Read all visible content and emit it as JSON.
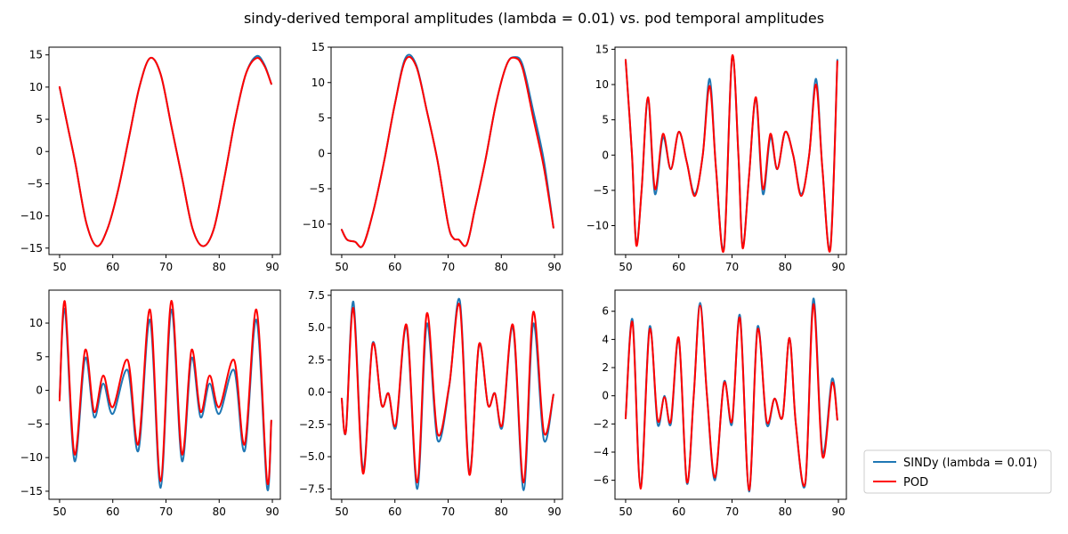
{
  "title": "sindy-derived temporal amplitudes (lambda = 0.01) vs. pod temporal amplitudes",
  "legend": {
    "placement": "bottom-right-outside",
    "entries": [
      {
        "label": "SINDy (lambda = 0.01)",
        "color": "#1f77b4"
      },
      {
        "label": "POD",
        "color": "#ff0000"
      }
    ]
  },
  "chart_data": [
    {
      "type": "line",
      "xlim": [
        48.0,
        91.5
      ],
      "ylim": [
        -16.0,
        16.2
      ],
      "xticks": [
        50,
        60,
        70,
        80,
        90
      ],
      "yticks": [
        -15,
        -10,
        -5,
        0,
        5,
        10,
        15
      ],
      "grid": false,
      "series": [
        {
          "name": "SINDy (lambda = 0.01)",
          "color": "#1f77b4",
          "x": [
            50,
            51.5,
            53,
            55,
            57,
            59,
            61,
            63,
            65,
            67,
            69,
            71,
            73,
            75,
            77,
            79,
            81,
            83,
            85,
            87,
            88.5,
            89.8
          ],
          "y": [
            10,
            4,
            -2,
            -11,
            -14.7,
            -12,
            -6,
            2,
            10,
            14.5,
            12,
            4,
            -4,
            -12,
            -14.7,
            -12,
            -4,
            5,
            12,
            14.8,
            13.5,
            10.5
          ]
        },
        {
          "name": "POD",
          "color": "#ff0000",
          "x": [
            50,
            51.5,
            53,
            55,
            57,
            59,
            61,
            63,
            65,
            67,
            69,
            71,
            73,
            75,
            77,
            79,
            81,
            83,
            85,
            87,
            88.5,
            89.8
          ],
          "y": [
            10,
            4,
            -2,
            -11,
            -14.7,
            -12,
            -6,
            2,
            10,
            14.5,
            12,
            4,
            -4,
            -12,
            -14.7,
            -12,
            -4,
            5,
            12,
            14.5,
            13.3,
            10.5
          ]
        }
      ]
    },
    {
      "type": "line",
      "xlim": [
        48.0,
        91.5
      ],
      "ylim": [
        -14.3,
        15.0
      ],
      "xticks": [
        50,
        60,
        70,
        80,
        90
      ],
      "yticks": [
        -10,
        -5,
        0,
        5,
        10,
        15
      ],
      "grid": false,
      "series": [
        {
          "name": "SINDy (lambda = 0.01)",
          "color": "#1f77b4",
          "x": [
            50,
            51,
            52.5,
            54,
            56,
            58,
            60,
            62,
            64,
            66,
            68,
            70,
            71,
            72,
            73.5,
            75,
            77,
            79,
            81,
            82.5,
            84,
            86,
            88,
            89.8
          ],
          "y": [
            -10.8,
            -12.2,
            -12.5,
            -13,
            -8,
            -1,
            7,
            13.5,
            12.5,
            6,
            -1,
            -10,
            -12,
            -12.2,
            -12.9,
            -8,
            -1,
            7,
            12.5,
            13.6,
            12.5,
            6,
            -1,
            -10.5
          ]
        },
        {
          "name": "POD",
          "color": "#ff0000",
          "x": [
            50,
            51,
            52.5,
            54,
            56,
            58,
            60,
            62,
            64,
            66,
            68,
            70,
            71,
            72,
            73.5,
            75,
            77,
            79,
            81,
            82.5,
            84,
            86,
            88,
            89.8
          ],
          "y": [
            -10.8,
            -12.2,
            -12.5,
            -13,
            -8,
            -1,
            7,
            13.2,
            12.3,
            6,
            -1,
            -10,
            -12,
            -12.2,
            -12.9,
            -8,
            -1,
            7,
            12.5,
            13.5,
            12,
            5,
            -2,
            -10.5
          ]
        }
      ]
    },
    {
      "type": "line",
      "xlim": [
        48.0,
        91.5
      ],
      "ylim": [
        -14.1,
        15.3
      ],
      "xticks": [
        50,
        60,
        70,
        80,
        90
      ],
      "yticks": [
        -10,
        -5,
        0,
        5,
        10,
        15
      ],
      "grid": false,
      "series": [
        {
          "name": "SINDy (lambda = 0.01)",
          "color": "#1f77b4",
          "x": [
            50,
            51.2,
            52,
            53,
            54.2,
            55.5,
            57,
            58.5,
            60,
            61.5,
            63,
            64.5,
            65.8,
            67,
            68.5,
            70,
            71.2,
            72,
            73.2,
            74.5,
            75.8,
            77.2,
            78.5,
            80,
            81.5,
            83,
            84.5,
            85.8,
            87,
            88.5,
            89.8
          ],
          "y": [
            13.5,
            0,
            -12.5,
            -5,
            8,
            -5.5,
            2.5,
            -2,
            3.3,
            -1,
            -5.5,
            0,
            10.8,
            -2,
            -13,
            13.8,
            0,
            -13,
            -3,
            8,
            -5.5,
            2.5,
            -2,
            3.3,
            0,
            -5.5,
            0,
            10.8,
            -2,
            -13,
            13.5
          ]
        },
        {
          "name": "POD",
          "color": "#ff0000",
          "x": [
            50,
            51.2,
            52,
            53,
            54.2,
            55.5,
            57,
            58.5,
            60,
            61.5,
            63,
            64.5,
            65.8,
            67,
            68.5,
            70,
            71.2,
            72,
            73.2,
            74.5,
            75.8,
            77.2,
            78.5,
            80,
            81.5,
            83,
            84.5,
            85.8,
            87,
            88.5,
            89.8
          ],
          "y": [
            13.5,
            0,
            -12.8,
            -5,
            8.2,
            -4.8,
            3,
            -2,
            3.3,
            -1,
            -5.8,
            0,
            9.8,
            -2,
            -13.3,
            13.9,
            0,
            -13.2,
            -3,
            8.2,
            -4.8,
            3,
            -2,
            3.3,
            0,
            -5.8,
            0,
            10,
            -2,
            -13.3,
            13.3
          ]
        }
      ]
    },
    {
      "type": "line",
      "xlim": [
        48.0,
        91.5
      ],
      "ylim": [
        -16.2,
        14.9
      ],
      "xticks": [
        50,
        60,
        70,
        80,
        90
      ],
      "yticks": [
        -15,
        -10,
        -5,
        0,
        5,
        10
      ],
      "grid": false,
      "series": [
        {
          "name": "SINDy (lambda = 0.01)",
          "color": "#1f77b4",
          "x": [
            50,
            51,
            52.8,
            54.8,
            56.5,
            58.2,
            60,
            62.8,
            64.8,
            67,
            69,
            71,
            73,
            74.8,
            76.5,
            78.2,
            80,
            82.8,
            84.8,
            87,
            89,
            89.8
          ],
          "y": [
            -1,
            12,
            -10.5,
            4.8,
            -4,
            1,
            -3.5,
            3,
            -9,
            10.5,
            -14.5,
            12,
            -10.5,
            4.8,
            -4,
            1,
            -3.5,
            3,
            -9,
            10.5,
            -14.5,
            -4.5
          ]
        },
        {
          "name": "POD",
          "color": "#ff0000",
          "x": [
            50,
            51,
            52.8,
            54.8,
            56.5,
            58.2,
            60,
            62.8,
            64.8,
            67,
            69,
            71,
            73,
            74.8,
            76.5,
            78.2,
            80,
            82.8,
            84.8,
            87,
            89,
            89.8
          ],
          "y": [
            -1.5,
            13.2,
            -9.5,
            6,
            -3.2,
            2.2,
            -2.5,
            4.5,
            -8,
            12,
            -13.5,
            13.3,
            -9.5,
            6,
            -3.2,
            2.2,
            -2.5,
            4.5,
            -8,
            12,
            -13.5,
            -4.5
          ]
        }
      ]
    },
    {
      "type": "line",
      "xlim": [
        48.0,
        91.5
      ],
      "ylim": [
        -8.3,
        7.9
      ],
      "xticks": [
        50,
        60,
        70,
        80,
        90
      ],
      "yticks": [
        -7.5,
        -5.0,
        -2.5,
        0.0,
        2.5,
        5.0,
        7.5
      ],
      "grid": false,
      "series": [
        {
          "name": "SINDy (lambda = 0.01)",
          "color": "#1f77b4",
          "x": [
            50,
            50.8,
            52.2,
            54,
            55.8,
            57.5,
            58.8,
            60.2,
            62.2,
            64.2,
            66,
            68,
            70.2,
            72.2,
            74,
            75.8,
            77.5,
            78.8,
            80.2,
            82.2,
            84.2,
            86,
            88,
            89.8
          ],
          "y": [
            -0.5,
            -3,
            7,
            -6,
            3.8,
            -1,
            -0.1,
            -2.7,
            5,
            -7.5,
            5.3,
            -3.7,
            0.4,
            7.1,
            -6.2,
            3.6,
            -1,
            -0.1,
            -2.7,
            5,
            -7.6,
            5.3,
            -3.7,
            -0.2
          ]
        },
        {
          "name": "POD",
          "color": "#ff0000",
          "x": [
            50,
            50.8,
            52.2,
            54,
            55.8,
            57.5,
            58.8,
            60.2,
            62.2,
            64.2,
            66,
            68,
            70.2,
            72.2,
            74,
            75.8,
            77.5,
            78.8,
            80.2,
            82.2,
            84.2,
            86,
            88,
            89.8
          ],
          "y": [
            -0.5,
            -3,
            6.5,
            -6.3,
            3.7,
            -1,
            -0.1,
            -2.5,
            5.2,
            -7,
            6.1,
            -3.2,
            0.5,
            6.7,
            -6.4,
            3.7,
            -1,
            -0.1,
            -2.5,
            5.2,
            -7,
            6.2,
            -3.1,
            -0.2
          ]
        }
      ]
    },
    {
      "type": "line",
      "xlim": [
        48.0,
        91.5
      ],
      "ylim": [
        -7.35,
        7.5
      ],
      "xticks": [
        50,
        60,
        70,
        80,
        90
      ],
      "yticks": [
        -6,
        -4,
        -2,
        0,
        2,
        4,
        6
      ],
      "grid": false,
      "series": [
        {
          "name": "SINDy (lambda = 0.01)",
          "color": "#1f77b4",
          "x": [
            50,
            51.3,
            52.8,
            54.5,
            56,
            57.3,
            58.5,
            60,
            61.5,
            62.8,
            64,
            65.3,
            66.8,
            68.5,
            70,
            71.5,
            73.2,
            74.8,
            76.5,
            78,
            79.5,
            80.8,
            82,
            83.8,
            85.3,
            87,
            88.8,
            89.8
          ],
          "y": [
            -1.6,
            5.4,
            -6.5,
            4.9,
            -2,
            0,
            -2,
            4,
            -6.2,
            0,
            6.6,
            0,
            -6,
            1,
            -2,
            5.7,
            -6.8,
            4.9,
            -2,
            -0.2,
            -1.5,
            4.1,
            -2,
            -6.2,
            6.9,
            -4,
            1.2,
            -1.7
          ]
        },
        {
          "name": "POD",
          "color": "#ff0000",
          "x": [
            50,
            51.3,
            52.8,
            54.5,
            56,
            57.3,
            58.5,
            60,
            61.5,
            62.8,
            64,
            65.3,
            66.8,
            68.5,
            70,
            71.5,
            73.2,
            74.8,
            76.5,
            78,
            79.5,
            80.8,
            82,
            83.8,
            85.3,
            87,
            88.8,
            89.8
          ],
          "y": [
            -1.6,
            5.2,
            -6.6,
            4.7,
            -1.7,
            -0.1,
            -1.8,
            4.1,
            -6.1,
            0,
            6.4,
            0,
            -5.8,
            0.9,
            -1.8,
            5.5,
            -6.7,
            4.7,
            -1.8,
            -0.2,
            -1.5,
            4.1,
            -2,
            -6.1,
            6.5,
            -4.3,
            0.9,
            -1.7
          ]
        }
      ]
    }
  ]
}
